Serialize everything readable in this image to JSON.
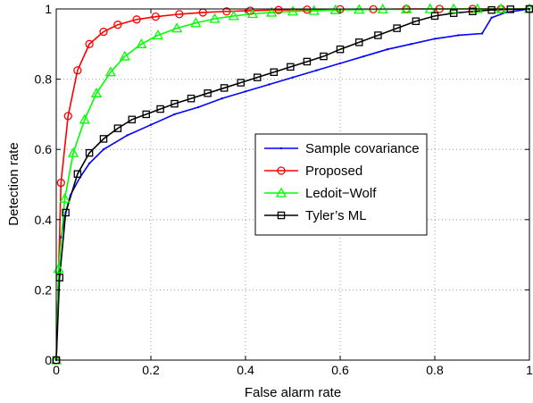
{
  "chart_data": {
    "type": "line",
    "title": "",
    "xlabel": "False alarm rate",
    "ylabel": "Detection rate",
    "xlim": [
      0,
      1
    ],
    "ylim": [
      0,
      1
    ],
    "xticks": [
      "0",
      "0.2",
      "0.4",
      "0.6",
      "0.8",
      "1"
    ],
    "yticks": [
      "0",
      "0.2",
      "0.4",
      "0.6",
      "0.8",
      "1"
    ],
    "grid": true,
    "legend_position": "center-right",
    "series": [
      {
        "name": "Sample covariance",
        "color": "#0000ff",
        "marker": "dot",
        "x": [
          0,
          0.005,
          0.01,
          0.02,
          0.03,
          0.05,
          0.07,
          0.1,
          0.15,
          0.2,
          0.25,
          0.3,
          0.35,
          0.4,
          0.45,
          0.5,
          0.55,
          0.6,
          0.65,
          0.7,
          0.75,
          0.8,
          0.85,
          0.9,
          0.92,
          0.95,
          1.0
        ],
        "y": [
          0,
          0.25,
          0.35,
          0.42,
          0.47,
          0.52,
          0.56,
          0.6,
          0.64,
          0.67,
          0.7,
          0.72,
          0.745,
          0.765,
          0.785,
          0.805,
          0.825,
          0.845,
          0.865,
          0.885,
          0.9,
          0.915,
          0.925,
          0.93,
          0.975,
          0.99,
          1.0
        ]
      },
      {
        "name": "Proposed",
        "color": "#ff0000",
        "marker": "circle",
        "x": [
          0,
          0.01,
          0.025,
          0.045,
          0.07,
          0.1,
          0.13,
          0.17,
          0.21,
          0.26,
          0.31,
          0.36,
          0.41,
          0.47,
          0.53,
          0.6,
          0.67,
          0.74,
          0.81,
          0.88,
          0.94,
          1.0
        ],
        "y": [
          0,
          0.505,
          0.695,
          0.825,
          0.9,
          0.935,
          0.955,
          0.97,
          0.978,
          0.985,
          0.99,
          0.993,
          0.995,
          0.997,
          0.998,
          0.999,
          0.999,
          1.0,
          1.0,
          1.0,
          1.0,
          1.0
        ],
        "marker_x": [
          0,
          0.01,
          0.025,
          0.045,
          0.07,
          0.1,
          0.13,
          0.17,
          0.21,
          0.26,
          0.31,
          0.36,
          0.41,
          0.47,
          0.53,
          0.6,
          0.67,
          0.74,
          0.81,
          0.88,
          0.94,
          1.0
        ],
        "marker_y": [
          0,
          0.505,
          0.695,
          0.825,
          0.9,
          0.935,
          0.955,
          0.97,
          0.978,
          0.985,
          0.99,
          0.993,
          0.995,
          0.997,
          0.998,
          0.999,
          0.999,
          1.0,
          1.0,
          1.0,
          1.0,
          1.0
        ]
      },
      {
        "name": "Ledoit−Wolf",
        "color": "#00ff00",
        "marker": "triangle",
        "x": [
          0,
          0.005,
          0.018,
          0.036,
          0.06,
          0.085,
          0.115,
          0.145,
          0.18,
          0.215,
          0.255,
          0.295,
          0.335,
          0.375,
          0.415,
          0.455,
          0.5,
          0.545,
          0.59,
          0.64,
          0.69,
          0.74,
          0.79,
          0.84,
          0.89,
          0.94,
          1.0
        ],
        "y": [
          0,
          0.26,
          0.46,
          0.59,
          0.685,
          0.76,
          0.82,
          0.865,
          0.9,
          0.925,
          0.945,
          0.96,
          0.972,
          0.98,
          0.986,
          0.99,
          0.993,
          0.995,
          0.997,
          0.998,
          0.999,
          0.999,
          1.0,
          1.0,
          1.0,
          1.0,
          1.0
        ]
      },
      {
        "name": "Tyler’s ML",
        "color": "#000000",
        "marker": "square",
        "x": [
          0,
          0.007,
          0.02,
          0.045,
          0.07,
          0.1,
          0.13,
          0.16,
          0.19,
          0.22,
          0.25,
          0.285,
          0.32,
          0.355,
          0.39,
          0.425,
          0.46,
          0.495,
          0.53,
          0.565,
          0.6,
          0.64,
          0.68,
          0.72,
          0.76,
          0.8,
          0.84,
          0.88,
          0.92,
          0.96,
          1.0
        ],
        "y": [
          0,
          0.235,
          0.42,
          0.53,
          0.59,
          0.63,
          0.66,
          0.685,
          0.7,
          0.715,
          0.73,
          0.745,
          0.76,
          0.775,
          0.79,
          0.805,
          0.82,
          0.835,
          0.85,
          0.865,
          0.885,
          0.905,
          0.925,
          0.945,
          0.965,
          0.98,
          0.988,
          0.993,
          0.997,
          0.999,
          1.0
        ]
      }
    ]
  }
}
